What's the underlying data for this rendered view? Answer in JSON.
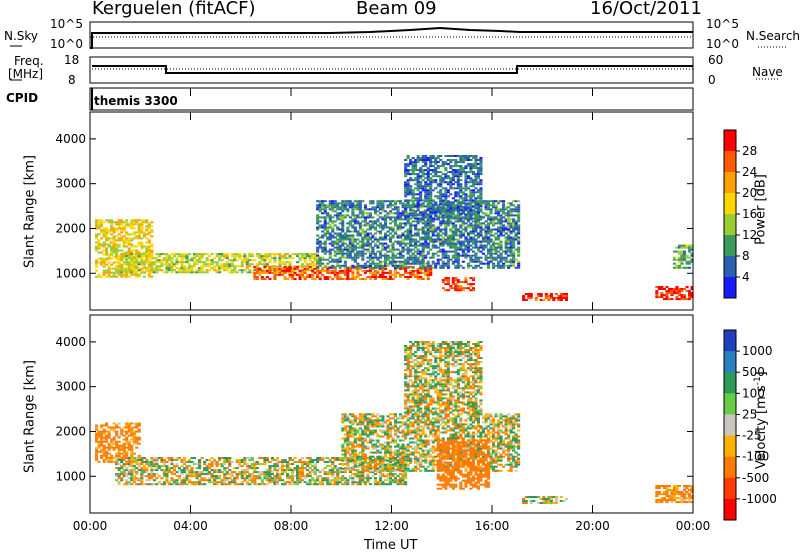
{
  "header": {
    "station": "Kerguelen (fitACF)",
    "beam": "Beam 09",
    "date": "16/Oct/2011"
  },
  "top_panels": {
    "nsky_label": "N.Sky",
    "nsky_ticks": [
      "10^5",
      "10^0"
    ],
    "nsearch_label": "N.Search",
    "nsearch_ticks": [
      "10^5",
      "10^0"
    ],
    "freq_label_1": "Freq.",
    "freq_label_2": "[MHz]",
    "freq_ticks": [
      "18",
      "8"
    ],
    "nave_label": "Nave",
    "nave_ticks": [
      "60",
      "0"
    ],
    "cpid_label": "CPID",
    "cpid_value": "themis 3300"
  },
  "chart_data": [
    {
      "type": "heatmap",
      "title": "",
      "xlabel": "Time UT",
      "ylabel": "Slant Range [km]",
      "x_ticks": [
        "00:00",
        "04:00",
        "08:00",
        "12:00",
        "16:00",
        "20:00",
        "00:00"
      ],
      "y_ticks": [
        "1000",
        "2000",
        "3000",
        "4000"
      ],
      "ylim": [
        180,
        4600
      ],
      "colorbar": {
        "label": "Power [dB]",
        "ticks": [
          "28",
          "24",
          "20",
          "16",
          "12",
          "8",
          "4"
        ],
        "colors": [
          "#ff0000",
          "#ff5a00",
          "#ff9f00",
          "#ffd700",
          "#9acd32",
          "#3a9a5a",
          "#2b5fb0",
          "#1a1aff"
        ]
      },
      "regions": [
        {
          "t_start": 0.2,
          "t_end": 2.5,
          "r_low": 900,
          "r_high": 2200,
          "level": 16
        },
        {
          "t_start": 1.0,
          "t_end": 9.0,
          "r_low": 1000,
          "r_high": 1450,
          "level": 14
        },
        {
          "t_start": 6.5,
          "t_end": 13.5,
          "r_low": 850,
          "r_high": 1150,
          "level": 24
        },
        {
          "t_start": 9.0,
          "t_end": 17.0,
          "r_low": 1100,
          "r_high": 2600,
          "level": 6
        },
        {
          "t_start": 12.5,
          "t_end": 15.5,
          "r_low": 2200,
          "r_high": 3600,
          "level": 5
        },
        {
          "t_start": 14.0,
          "t_end": 15.2,
          "r_low": 600,
          "r_high": 900,
          "level": 26
        },
        {
          "t_start": 17.2,
          "t_end": 19.0,
          "r_low": 380,
          "r_high": 550,
          "level": 26
        },
        {
          "t_start": 22.5,
          "t_end": 24.0,
          "r_low": 400,
          "r_high": 700,
          "level": 28
        },
        {
          "t_start": 23.2,
          "t_end": 24.0,
          "r_low": 1100,
          "r_high": 1600,
          "level": 10
        }
      ]
    },
    {
      "type": "heatmap",
      "title": "",
      "xlabel": "Time UT",
      "ylabel": "Slant Range [km]",
      "x_ticks": [
        "00:00",
        "04:00",
        "08:00",
        "12:00",
        "16:00",
        "20:00",
        "00:00"
      ],
      "y_ticks": [
        "1000",
        "2000",
        "3000",
        "4000"
      ],
      "ylim": [
        180,
        4600
      ],
      "colorbar": {
        "label": "Velocity [m s^-1]",
        "label_main": "Velocity",
        "label_unit": "[m s",
        "label_exp": "-1",
        "label_close": "]",
        "ticks": [
          "1000",
          "500",
          "100",
          "25",
          "-25",
          "-100",
          "-500",
          "-1000"
        ],
        "colors": [
          "#1f3fbf",
          "#2a7fbf",
          "#2e9a5a",
          "#66cc44",
          "#c8c8c0",
          "#ffb000",
          "#ff7a00",
          "#ff3a00",
          "#ff0000"
        ]
      },
      "regions": [
        {
          "t_start": 0.2,
          "t_end": 2.0,
          "r_low": 1300,
          "r_high": 2200,
          "velocity": -200
        },
        {
          "t_start": 1.0,
          "t_end": 12.5,
          "r_low": 800,
          "r_high": 1400,
          "velocity": 0
        },
        {
          "t_start": 10.0,
          "t_end": 17.0,
          "r_low": 1100,
          "r_high": 2400,
          "velocity": 0
        },
        {
          "t_start": 12.5,
          "t_end": 15.5,
          "r_low": 2400,
          "r_high": 4000,
          "velocity": 0
        },
        {
          "t_start": 13.8,
          "t_end": 15.8,
          "r_low": 700,
          "r_high": 1800,
          "velocity": -300
        },
        {
          "t_start": 17.2,
          "t_end": 19.0,
          "r_low": 380,
          "r_high": 550,
          "velocity": 0
        },
        {
          "t_start": 22.5,
          "t_end": 24.0,
          "r_low": 400,
          "r_high": 800,
          "velocity": -200
        }
      ]
    }
  ]
}
